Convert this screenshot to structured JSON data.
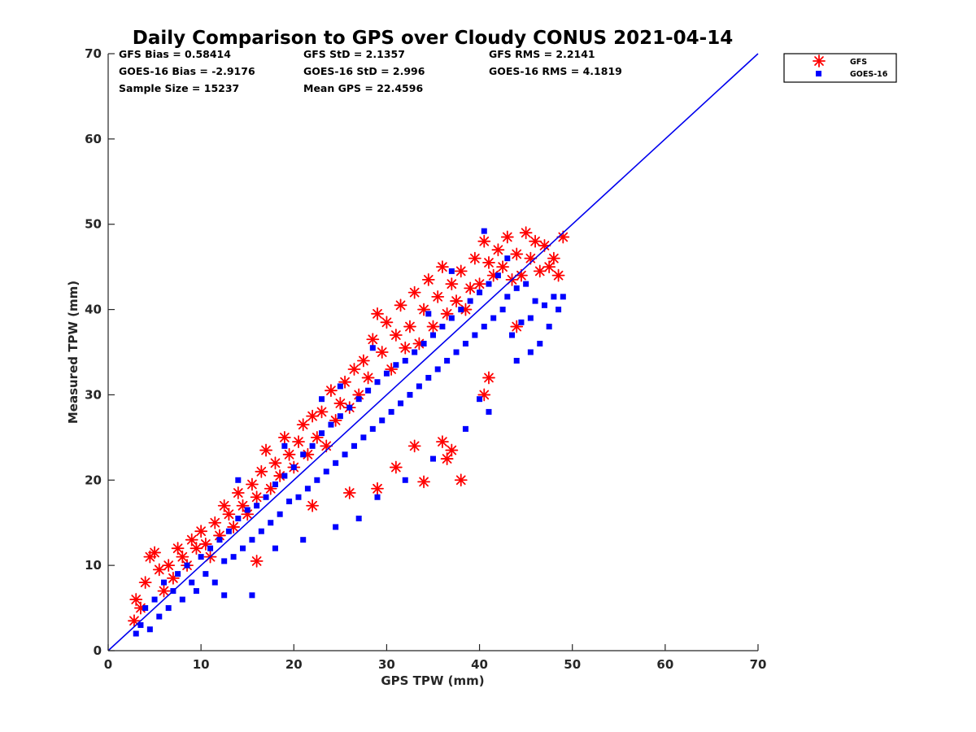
{
  "chart_data": {
    "type": "scatter",
    "title": "Daily Comparison to GPS over Cloudy CONUS 2021-04-14",
    "xlabel": "GPS TPW (mm)",
    "ylabel": "Measured TPW (mm)",
    "xlim": [
      0,
      70
    ],
    "ylim": [
      0,
      70
    ],
    "xticks": [
      "0",
      "10",
      "20",
      "30",
      "40",
      "50",
      "60",
      "70"
    ],
    "yticks": [
      "0",
      "10",
      "20",
      "30",
      "40",
      "50",
      "60",
      "70"
    ],
    "grid": false,
    "legend_position": "outside-top-right",
    "stats": [
      [
        "GFS Bias = 0.58414",
        "GFS StD = 2.1357",
        "GFS RMS = 2.2141"
      ],
      [
        "GOES-16 Bias = -2.9176",
        "GOES-16 StD = 2.996",
        "GOES-16 RMS = 4.1819"
      ],
      [
        "Sample Size = 15237",
        "Mean GPS = 22.4596",
        ""
      ]
    ],
    "reference_line": {
      "type": "one-to-one",
      "x": [
        0,
        70
      ],
      "y": [
        0,
        70
      ],
      "color": "#0000ee"
    },
    "series": [
      {
        "name": "GFS",
        "marker": "asterisk",
        "color": "#ff0000",
        "points": [
          [
            2.8,
            3.5
          ],
          [
            3.0,
            6.0
          ],
          [
            3.5,
            5.0
          ],
          [
            4.0,
            8.0
          ],
          [
            4.5,
            11.0
          ],
          [
            5.0,
            11.5
          ],
          [
            5.5,
            9.5
          ],
          [
            6.0,
            7.0
          ],
          [
            6.5,
            10.0
          ],
          [
            7.0,
            8.5
          ],
          [
            7.5,
            12.0
          ],
          [
            8.0,
            11.0
          ],
          [
            8.5,
            10.0
          ],
          [
            9.0,
            13.0
          ],
          [
            9.5,
            12.0
          ],
          [
            10.0,
            14.0
          ],
          [
            10.5,
            12.5
          ],
          [
            11.0,
            11.0
          ],
          [
            11.5,
            15.0
          ],
          [
            12.0,
            13.5
          ],
          [
            12.5,
            17.0
          ],
          [
            13.0,
            16.0
          ],
          [
            13.5,
            14.5
          ],
          [
            14.0,
            18.5
          ],
          [
            14.5,
            17.0
          ],
          [
            15.0,
            16.0
          ],
          [
            15.5,
            19.5
          ],
          [
            16.0,
            18.0
          ],
          [
            16.5,
            21.0
          ],
          [
            17.0,
            23.5
          ],
          [
            17.5,
            19.0
          ],
          [
            18.0,
            22.0
          ],
          [
            18.5,
            20.5
          ],
          [
            19.0,
            25.0
          ],
          [
            19.5,
            23.0
          ],
          [
            20.0,
            21.5
          ],
          [
            20.5,
            24.5
          ],
          [
            21.0,
            26.5
          ],
          [
            21.5,
            23.0
          ],
          [
            22.0,
            27.5
          ],
          [
            22.5,
            25.0
          ],
          [
            23.0,
            28.0
          ],
          [
            23.5,
            24.0
          ],
          [
            24.0,
            30.5
          ],
          [
            24.5,
            27.0
          ],
          [
            25.0,
            29.0
          ],
          [
            25.5,
            31.5
          ],
          [
            26.0,
            28.5
          ],
          [
            26.5,
            33.0
          ],
          [
            27.0,
            30.0
          ],
          [
            27.5,
            34.0
          ],
          [
            28.0,
            32.0
          ],
          [
            28.5,
            36.5
          ],
          [
            29.0,
            39.5
          ],
          [
            29.5,
            35.0
          ],
          [
            30.0,
            38.5
          ],
          [
            30.5,
            33.0
          ],
          [
            31.0,
            37.0
          ],
          [
            31.5,
            40.5
          ],
          [
            32.0,
            35.5
          ],
          [
            32.5,
            38.0
          ],
          [
            33.0,
            42.0
          ],
          [
            33.5,
            36.0
          ],
          [
            34.0,
            40.0
          ],
          [
            34.5,
            43.5
          ],
          [
            35.0,
            38.0
          ],
          [
            35.5,
            41.5
          ],
          [
            36.0,
            45.0
          ],
          [
            36.5,
            39.5
          ],
          [
            37.0,
            43.0
          ],
          [
            37.5,
            41.0
          ],
          [
            38.0,
            44.5
          ],
          [
            38.5,
            40.0
          ],
          [
            39.0,
            42.5
          ],
          [
            39.5,
            46.0
          ],
          [
            40.0,
            43.0
          ],
          [
            40.5,
            48.0
          ],
          [
            41.0,
            45.5
          ],
          [
            41.5,
            44.0
          ],
          [
            42.0,
            47.0
          ],
          [
            42.5,
            45.0
          ],
          [
            43.0,
            48.5
          ],
          [
            43.5,
            43.5
          ],
          [
            44.0,
            46.5
          ],
          [
            44.5,
            44.0
          ],
          [
            45.0,
            49.0
          ],
          [
            45.5,
            46.0
          ],
          [
            46.0,
            48.0
          ],
          [
            46.5,
            44.5
          ],
          [
            47.0,
            47.5
          ],
          [
            47.5,
            45.0
          ],
          [
            48.0,
            46.0
          ],
          [
            48.5,
            44.0
          ],
          [
            49.0,
            48.5
          ],
          [
            16.0,
            10.5
          ],
          [
            22.0,
            17.0
          ],
          [
            26.0,
            18.5
          ],
          [
            31.0,
            21.5
          ],
          [
            34.0,
            19.8
          ],
          [
            36.5,
            22.5
          ],
          [
            38.0,
            20.0
          ],
          [
            36.0,
            24.5
          ],
          [
            37.0,
            23.5
          ],
          [
            40.5,
            30.0
          ],
          [
            29.0,
            19.0
          ],
          [
            33.0,
            24.0
          ],
          [
            41.0,
            32.0
          ],
          [
            44.0,
            38.0
          ]
        ]
      },
      {
        "name": "GOES-16",
        "marker": "square",
        "color": "#0000ff",
        "points": [
          [
            3.0,
            2.0
          ],
          [
            3.5,
            3.0
          ],
          [
            4.0,
            5.0
          ],
          [
            4.5,
            2.5
          ],
          [
            5.0,
            6.0
          ],
          [
            5.5,
            4.0
          ],
          [
            6.0,
            8.0
          ],
          [
            6.5,
            5.0
          ],
          [
            7.0,
            7.0
          ],
          [
            7.5,
            9.0
          ],
          [
            8.0,
            6.0
          ],
          [
            8.5,
            10.0
          ],
          [
            9.0,
            8.0
          ],
          [
            9.5,
            7.0
          ],
          [
            10.0,
            11.0
          ],
          [
            10.5,
            9.0
          ],
          [
            11.0,
            12.0
          ],
          [
            11.5,
            8.0
          ],
          [
            12.0,
            13.0
          ],
          [
            12.5,
            10.5
          ],
          [
            13.0,
            14.0
          ],
          [
            13.5,
            11.0
          ],
          [
            14.0,
            15.5
          ],
          [
            14.5,
            12.0
          ],
          [
            15.0,
            16.5
          ],
          [
            15.5,
            13.0
          ],
          [
            16.0,
            17.0
          ],
          [
            16.5,
            14.0
          ],
          [
            17.0,
            18.0
          ],
          [
            17.5,
            15.0
          ],
          [
            18.0,
            19.5
          ],
          [
            18.5,
            16.0
          ],
          [
            19.0,
            20.5
          ],
          [
            19.5,
            17.5
          ],
          [
            20.0,
            21.5
          ],
          [
            20.5,
            18.0
          ],
          [
            21.0,
            23.0
          ],
          [
            21.5,
            19.0
          ],
          [
            22.0,
            24.0
          ],
          [
            22.5,
            20.0
          ],
          [
            23.0,
            25.5
          ],
          [
            23.5,
            21.0
          ],
          [
            24.0,
            26.5
          ],
          [
            24.5,
            22.0
          ],
          [
            25.0,
            27.5
          ],
          [
            25.5,
            23.0
          ],
          [
            26.0,
            28.5
          ],
          [
            26.5,
            24.0
          ],
          [
            27.0,
            29.5
          ],
          [
            27.5,
            25.0
          ],
          [
            28.0,
            30.5
          ],
          [
            28.5,
            26.0
          ],
          [
            29.0,
            31.5
          ],
          [
            29.5,
            27.0
          ],
          [
            30.0,
            32.5
          ],
          [
            30.5,
            28.0
          ],
          [
            31.0,
            33.5
          ],
          [
            31.5,
            29.0
          ],
          [
            32.0,
            34.0
          ],
          [
            32.5,
            30.0
          ],
          [
            33.0,
            35.0
          ],
          [
            33.5,
            31.0
          ],
          [
            34.0,
            36.0
          ],
          [
            34.5,
            32.0
          ],
          [
            35.0,
            37.0
          ],
          [
            35.5,
            33.0
          ],
          [
            36.0,
            38.0
          ],
          [
            36.5,
            34.0
          ],
          [
            37.0,
            39.0
          ],
          [
            37.5,
            35.0
          ],
          [
            38.0,
            40.0
          ],
          [
            38.5,
            36.0
          ],
          [
            39.0,
            41.0
          ],
          [
            39.5,
            37.0
          ],
          [
            40.0,
            42.0
          ],
          [
            40.5,
            38.0
          ],
          [
            41.0,
            43.0
          ],
          [
            41.5,
            39.0
          ],
          [
            42.0,
            44.0
          ],
          [
            42.5,
            40.0
          ],
          [
            43.0,
            41.5
          ],
          [
            43.5,
            37.0
          ],
          [
            44.0,
            42.5
          ],
          [
            44.5,
            38.5
          ],
          [
            45.0,
            43.0
          ],
          [
            45.5,
            39.0
          ],
          [
            46.0,
            41.0
          ],
          [
            46.5,
            36.0
          ],
          [
            47.0,
            40.5
          ],
          [
            47.5,
            38.0
          ],
          [
            48.0,
            41.5
          ],
          [
            48.5,
            40.0
          ],
          [
            49.0,
            41.5
          ],
          [
            40.5,
            49.2
          ],
          [
            43.0,
            46.0
          ],
          [
            37.0,
            44.5
          ],
          [
            12.5,
            6.5
          ],
          [
            15.5,
            6.5
          ],
          [
            18.0,
            12.0
          ],
          [
            21.0,
            13.0
          ],
          [
            24.5,
            14.5
          ],
          [
            27.0,
            15.5
          ],
          [
            29.0,
            18.0
          ],
          [
            32.0,
            20.0
          ],
          [
            35.0,
            22.5
          ],
          [
            38.5,
            26.0
          ],
          [
            41.0,
            28.0
          ],
          [
            40.0,
            29.5
          ],
          [
            44.0,
            34.0
          ],
          [
            45.5,
            35.0
          ],
          [
            14.0,
            20.0
          ],
          [
            19.0,
            24.0
          ],
          [
            23.0,
            29.5
          ],
          [
            25.0,
            31.0
          ],
          [
            28.5,
            35.5
          ],
          [
            34.5,
            39.5
          ]
        ]
      }
    ]
  }
}
